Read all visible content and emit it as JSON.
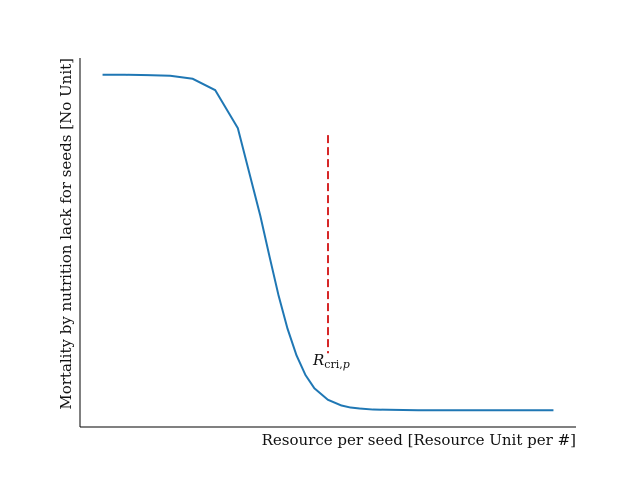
{
  "chart_data": {
    "type": "line",
    "title": "",
    "xlabel": "Resource per seed [Resource Unit per #]",
    "ylabel": "Mortality by nutrition lack for seeds [No Unit]",
    "xlim": [
      0,
      1.1
    ],
    "ylim": [
      -0.05,
      1.05
    ],
    "grid": false,
    "legend": "none",
    "series": [
      {
        "color": "#1f77b4",
        "x": [
          0.05,
          0.1,
          0.15,
          0.2,
          0.25,
          0.3,
          0.35,
          0.4,
          0.42,
          0.44,
          0.46,
          0.48,
          0.5,
          0.52,
          0.55,
          0.58,
          0.6,
          0.62,
          0.65,
          0.7,
          0.75,
          0.8,
          0.85,
          0.9,
          0.95,
          1.0,
          1.05
        ],
        "y": [
          1.0,
          1.0,
          0.999,
          0.997,
          0.988,
          0.954,
          0.841,
          0.579,
          0.46,
          0.344,
          0.244,
          0.164,
          0.105,
          0.065,
          0.031,
          0.014,
          0.008,
          0.005,
          0.002,
          0.001,
          0.0,
          0.0,
          0.0,
          0.0,
          0.0,
          0.0,
          0.0
        ]
      }
    ],
    "annotations": [
      {
        "type": "vline",
        "x": 0.55,
        "y_from": 0.17,
        "y_to": 0.82,
        "color": "#d62728",
        "style": "dashed",
        "label_main": "R",
        "label_sub": "cri,",
        "label_sub_italic": "p"
      }
    ]
  }
}
